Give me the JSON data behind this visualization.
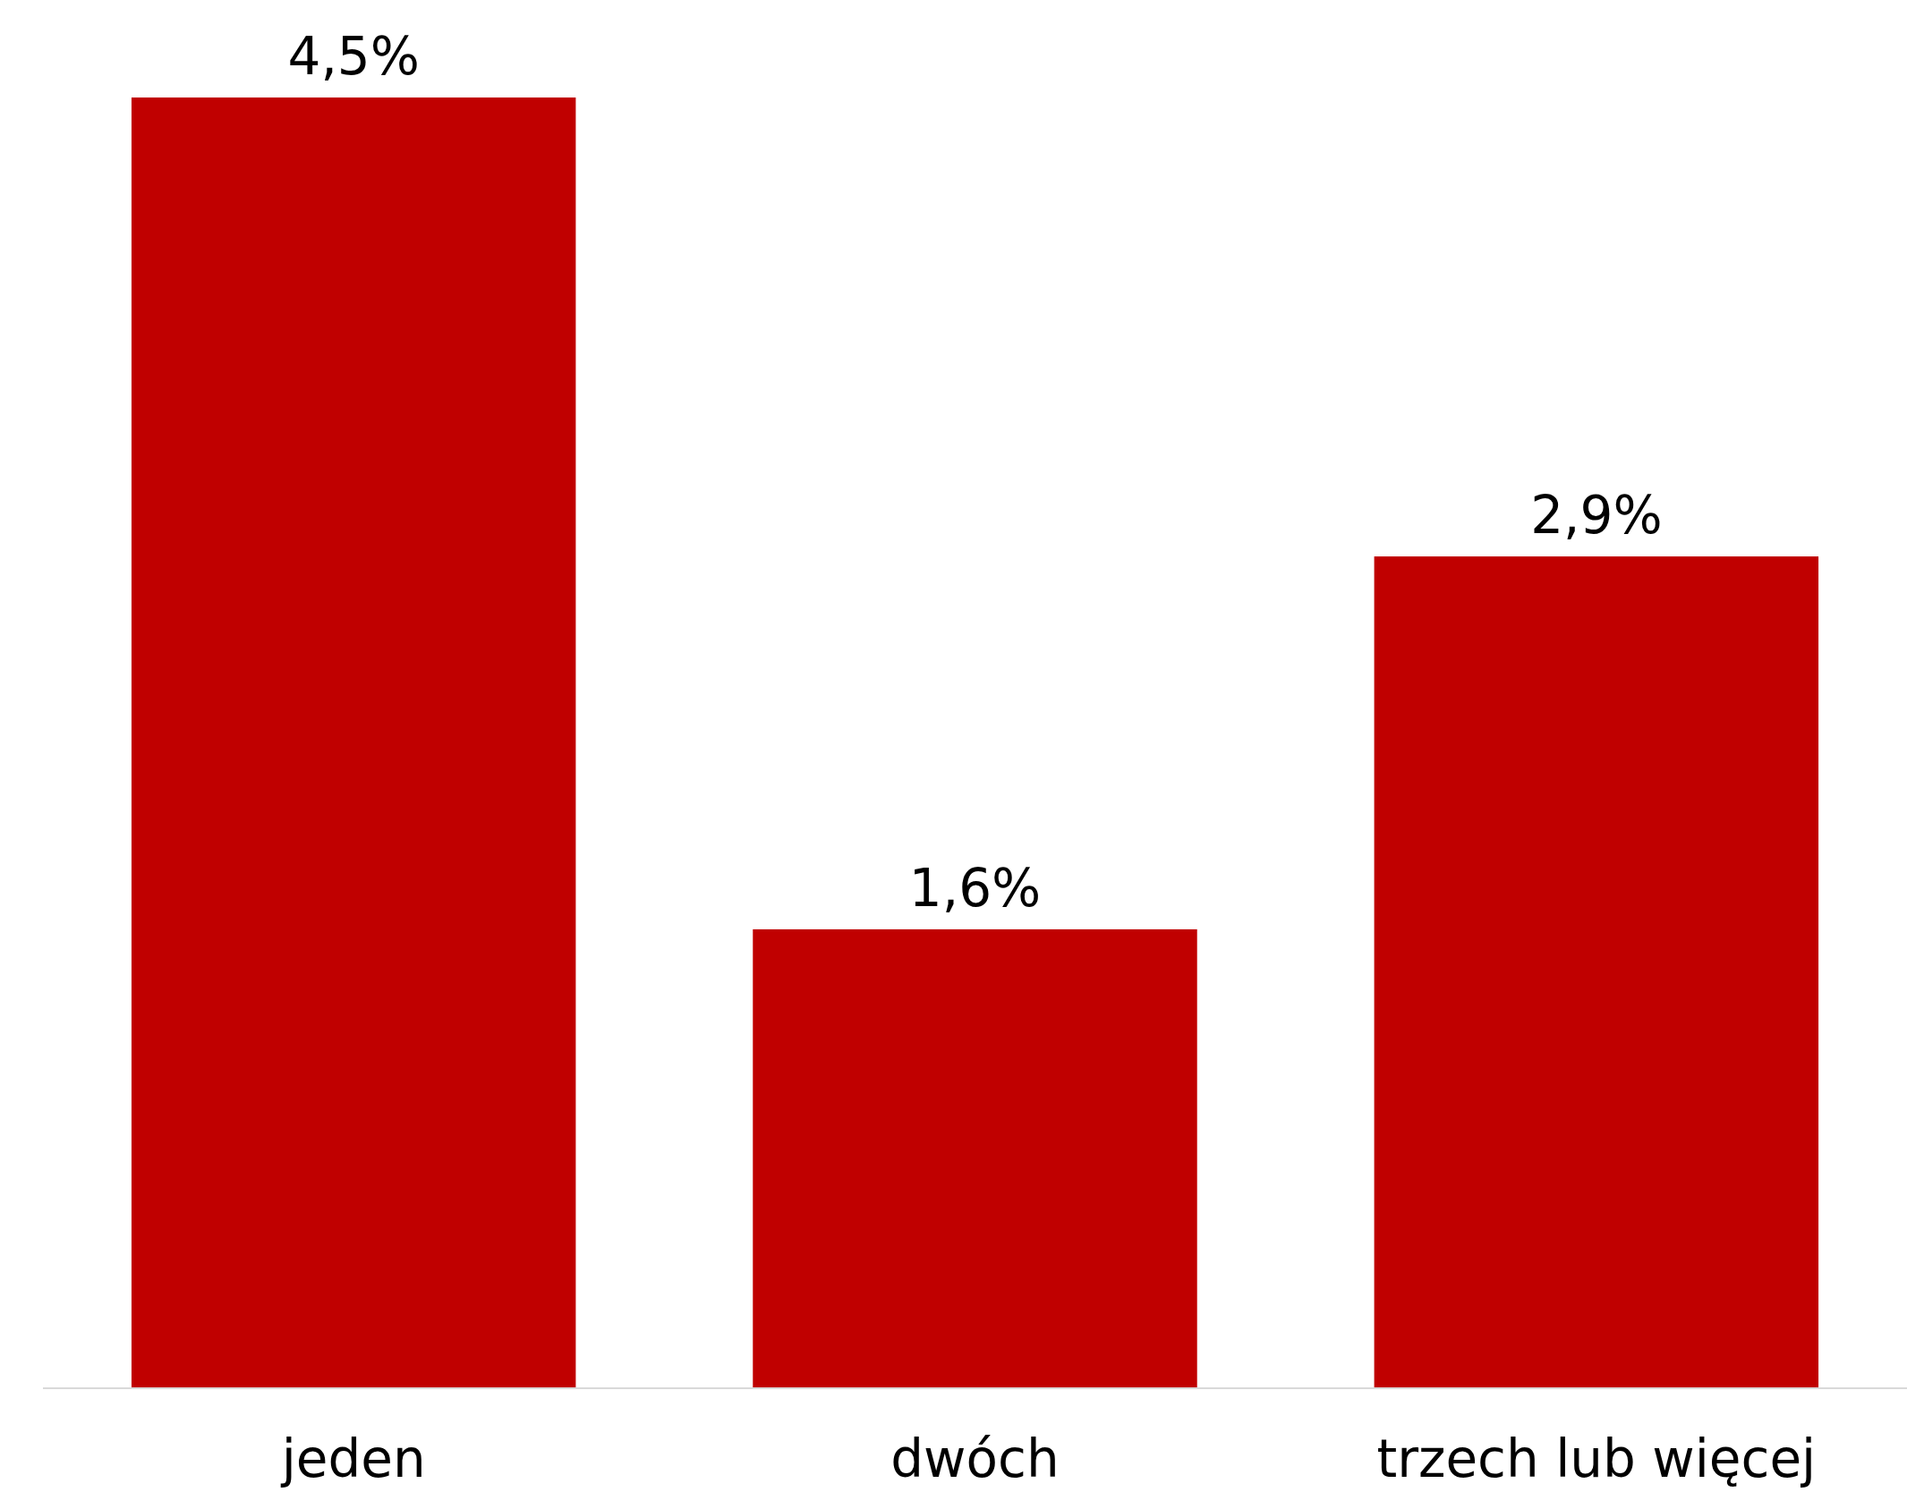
{
  "chart_data": {
    "type": "bar",
    "categories": [
      "jeden",
      "dwóch",
      "trzech lub więcej"
    ],
    "values": [
      4.5,
      1.6,
      2.9
    ],
    "value_labels": [
      "4,5%",
      "1,6%",
      "2,9%"
    ],
    "color": "#c00000"
  }
}
